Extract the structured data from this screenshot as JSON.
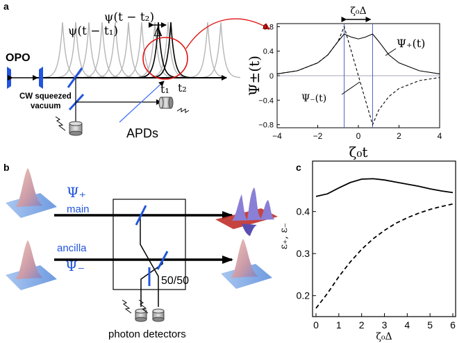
{
  "panel_labels": {
    "a": "a",
    "b": "b",
    "c": "c"
  },
  "panel_a": {
    "opo_label": "OPO",
    "squeezed_label_line1": "CW squeezed",
    "squeezed_label_line2": "vacuum",
    "apds_label": "APDs",
    "psi_t1_label": "ψ(t − t₁)",
    "psi_t2_label": "ψ(t − t₂)",
    "delta_label": "Δ",
    "t1_label": "t₁",
    "t2_label": "t₂"
  },
  "panel_b": {
    "psi_plus_label": "Ψ₊",
    "main_label": "main",
    "ancilla_label": "ancilla",
    "psi_minus_label": "Ψ₋",
    "splitter_label": "50/50",
    "detectors_label": "photon detectors"
  },
  "chart_data": [
    {
      "type": "line",
      "panel": "a-inset",
      "xlabel": "ζ₀t",
      "ylabel": "Ψ±(t)",
      "xlim": [
        -4,
        4
      ],
      "ylim": [
        -0.85,
        0.85
      ],
      "x_ticks": [
        "−4",
        "−2",
        "0",
        "2",
        "4"
      ],
      "y_ticks": [
        "0.8",
        "0.4",
        "0",
        "−0.4",
        "−0.8"
      ],
      "top_annotation": "ζ₀Δ",
      "markers_x": [
        -0.7,
        0.7
      ],
      "series": [
        {
          "name": "Ψ₊(t)",
          "style": "solid",
          "x": [
            -4,
            -3,
            -2,
            -1.5,
            -1,
            -0.7,
            -0.35,
            0,
            0.35,
            0.7,
            1,
            1.5,
            2,
            3,
            4
          ],
          "y": [
            0.03,
            0.08,
            0.21,
            0.34,
            0.56,
            0.68,
            0.63,
            0.6,
            0.63,
            0.68,
            0.56,
            0.34,
            0.21,
            0.08,
            0.03
          ]
        },
        {
          "name": "Ψ₋(t)",
          "style": "dashed",
          "x": [
            -4,
            -3,
            -2,
            -1.5,
            -1,
            -0.7,
            -0.35,
            0,
            0.35,
            0.7,
            1,
            1.5,
            2,
            3,
            4
          ],
          "y": [
            0.03,
            0.08,
            0.21,
            0.34,
            0.56,
            0.8,
            0.4,
            0,
            -0.4,
            -0.8,
            -0.56,
            -0.34,
            -0.21,
            -0.08,
            -0.03
          ]
        }
      ]
    },
    {
      "type": "line",
      "panel": "c",
      "xlabel": "ζ₀Δ",
      "ylabel": "ε₊, ε₋",
      "xlim": [
        0,
        6
      ],
      "ylim": [
        0.15,
        0.52
      ],
      "x_ticks": [
        "0",
        "1",
        "2",
        "3",
        "4",
        "5",
        "6"
      ],
      "y_ticks": [
        "0.2",
        "0.3",
        "0.4"
      ],
      "series": [
        {
          "name": "ε₊",
          "style": "solid",
          "x": [
            0,
            0.5,
            1,
            1.5,
            2,
            2.5,
            3,
            3.5,
            4,
            4.5,
            5,
            5.5,
            6
          ],
          "y": [
            0.436,
            0.442,
            0.456,
            0.469,
            0.477,
            0.478,
            0.475,
            0.47,
            0.465,
            0.46,
            0.454,
            0.449,
            0.445
          ]
        },
        {
          "name": "ε₋",
          "style": "dashed",
          "x": [
            0,
            0.5,
            1,
            1.5,
            2,
            2.5,
            3,
            3.5,
            4,
            4.5,
            5,
            5.5,
            6
          ],
          "y": [
            0.17,
            0.205,
            0.245,
            0.28,
            0.31,
            0.335,
            0.355,
            0.372,
            0.385,
            0.396,
            0.405,
            0.412,
            0.418
          ]
        }
      ]
    }
  ],
  "colors": {
    "accent_blue": "#2255dd",
    "pulse_gray": "#b5b5b5",
    "circle_red": "#e01010"
  }
}
